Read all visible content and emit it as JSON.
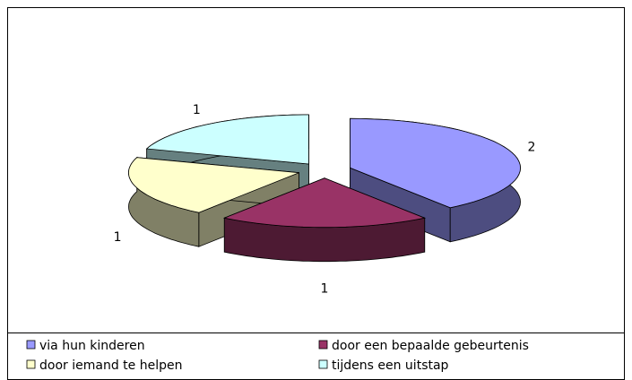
{
  "chart_data": {
    "type": "pie3d",
    "categories": [
      "via hun kinderen",
      "door een bepaalde gebeurtenis",
      "door iemand te helpen",
      "tijdens een uitstap"
    ],
    "values": [
      2,
      1,
      1,
      1
    ],
    "colors": [
      "#9999ff",
      "#993366",
      "#ffffcc",
      "#ccffff"
    ],
    "legend": "bottom"
  }
}
